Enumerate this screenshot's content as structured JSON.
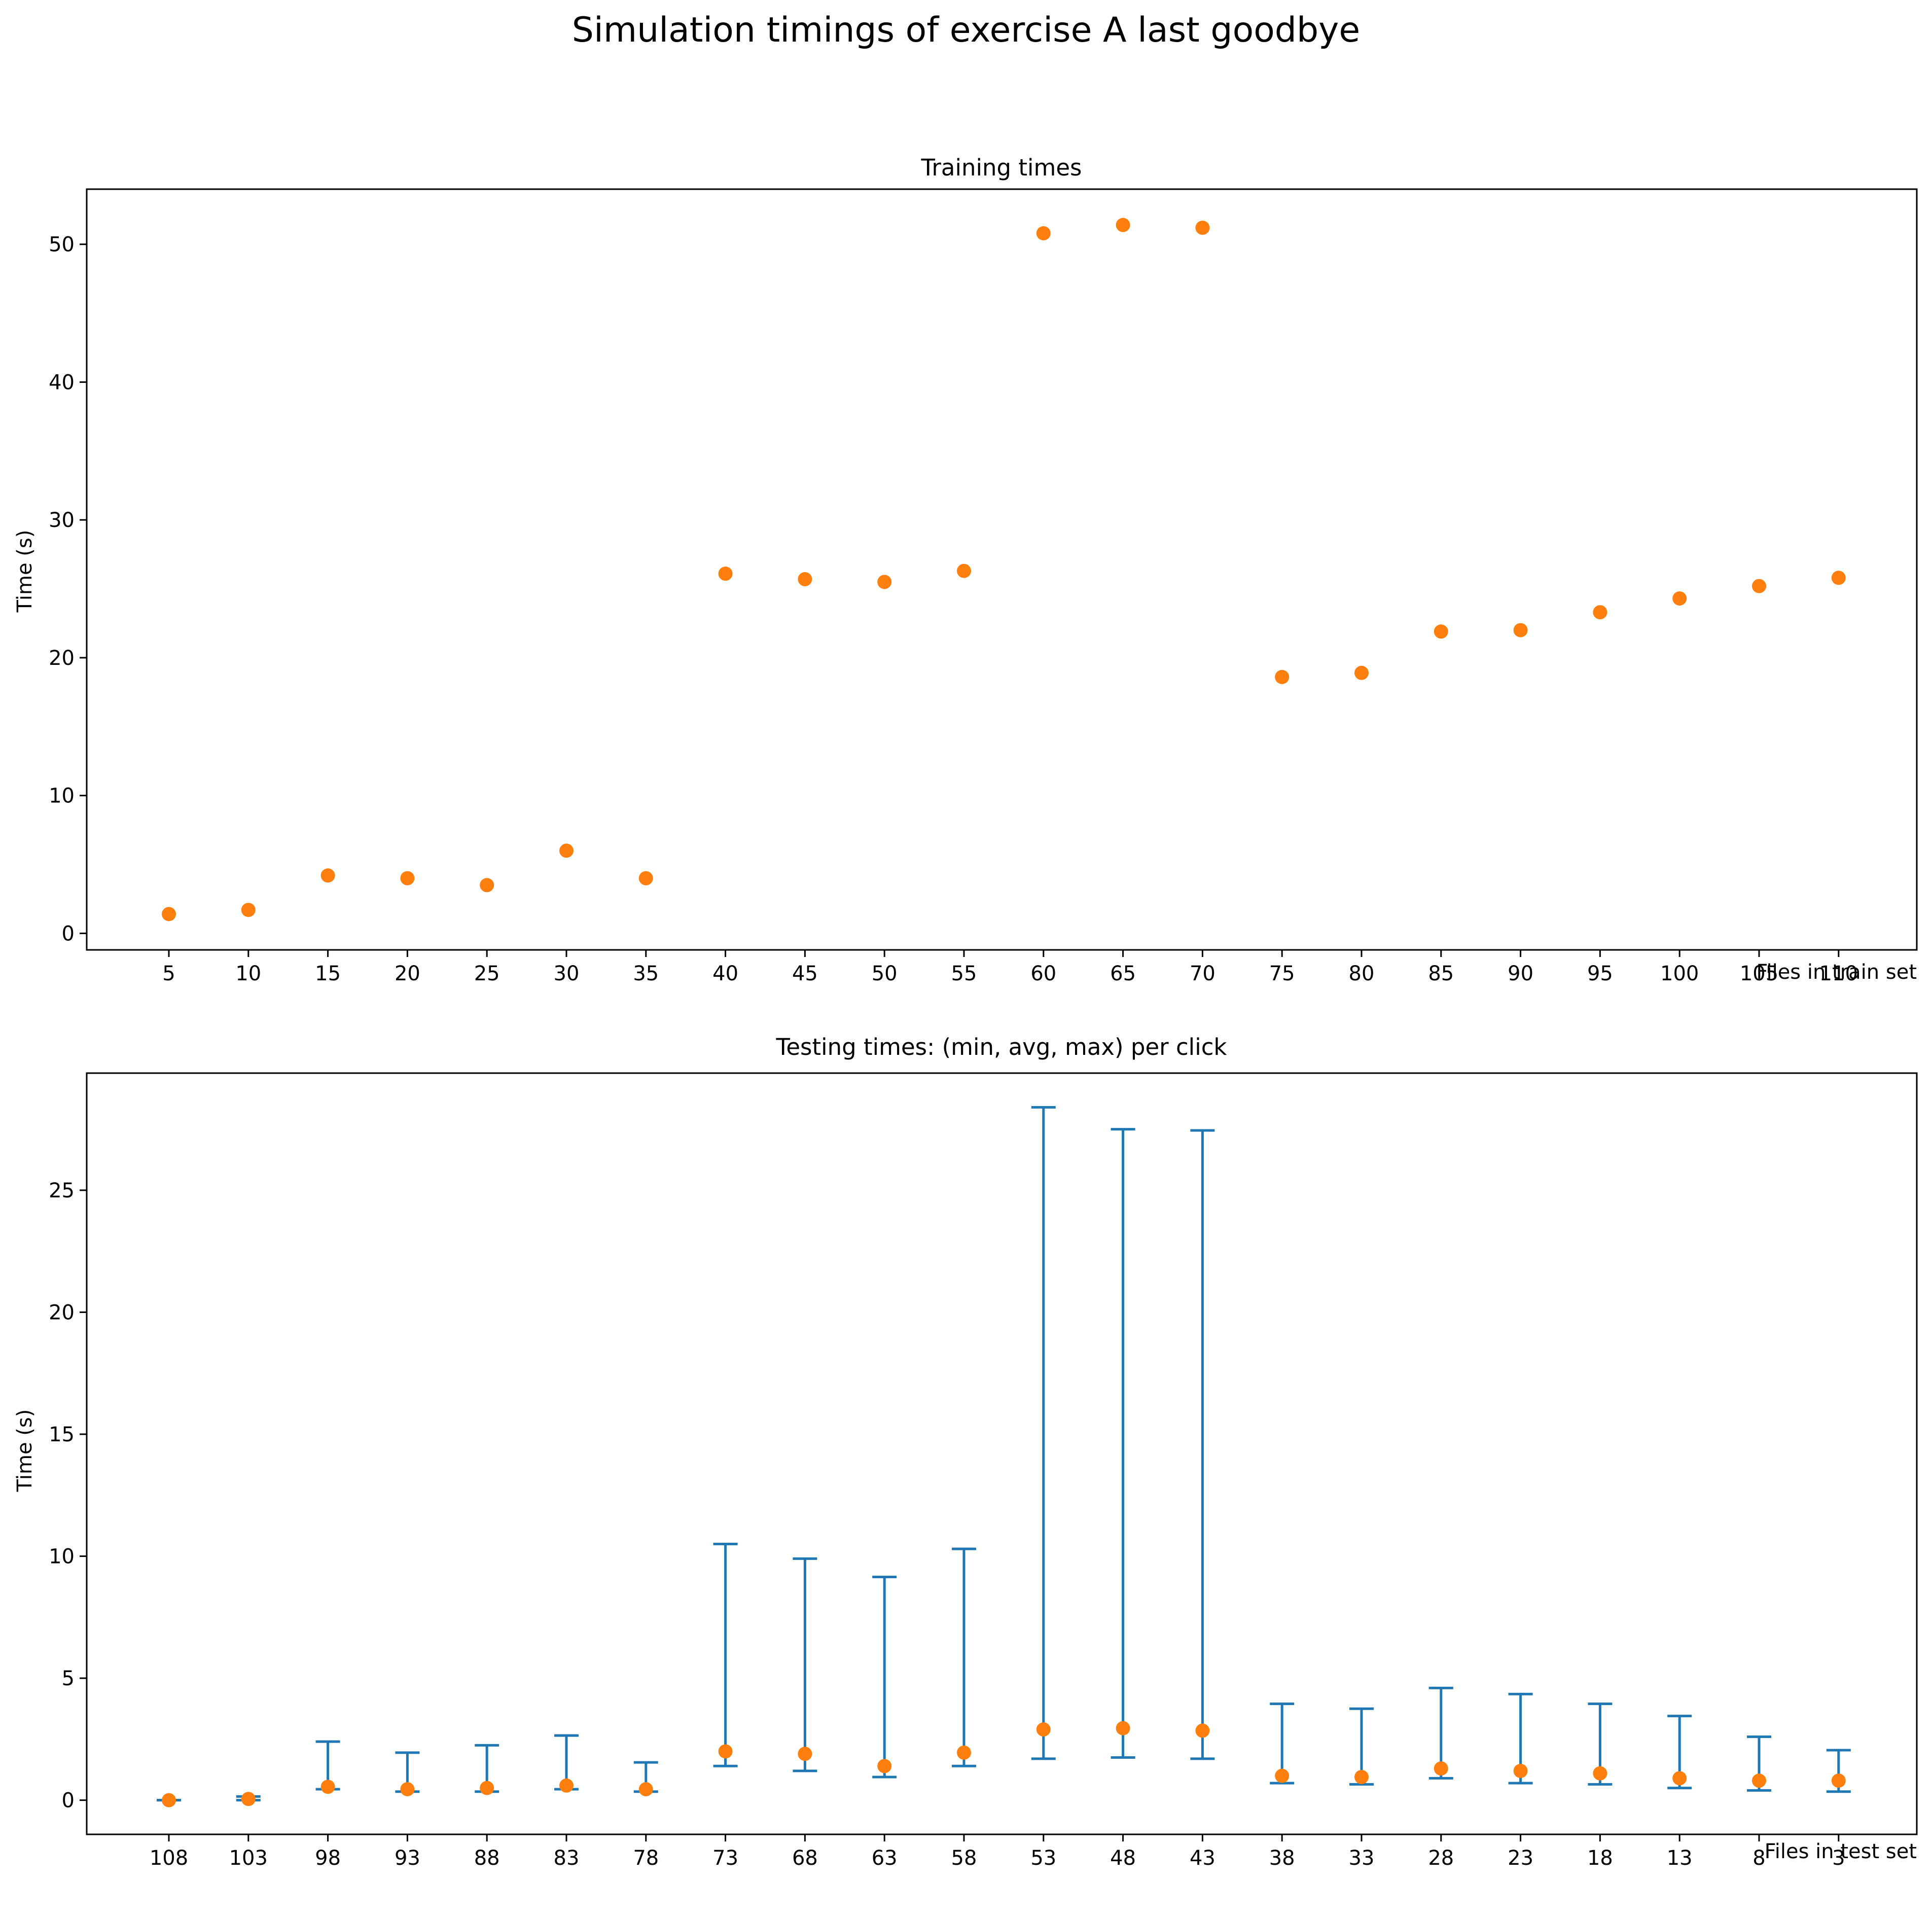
{
  "figure": {
    "suptitle": "Simulation timings of exercise A last goodbye"
  },
  "colors": {
    "marker": "#ff7f0e",
    "errorbar": "#1f77b4",
    "axes": "#000000"
  },
  "chart_data": [
    {
      "type": "scatter",
      "title": "Training times",
      "xlabel": "Files in train set",
      "ylabel": "Time (s)",
      "categories": [
        "5",
        "10",
        "15",
        "20",
        "25",
        "30",
        "35",
        "40",
        "45",
        "50",
        "55",
        "60",
        "65",
        "70",
        "75",
        "80",
        "85",
        "90",
        "95",
        "100",
        "105",
        "110"
      ],
      "values": [
        1.4,
        1.7,
        4.2,
        4.0,
        3.5,
        6.0,
        4.0,
        26.1,
        25.7,
        25.5,
        26.3,
        50.8,
        51.4,
        51.2,
        18.6,
        18.9,
        21.9,
        22.0,
        23.3,
        24.3,
        25.2,
        25.8
      ],
      "ylim": [
        -1.2,
        54.0
      ],
      "yticks": [
        0,
        10,
        20,
        30,
        40,
        50
      ],
      "grid": false,
      "legend": "none"
    },
    {
      "type": "scatter",
      "title": "Testing times: (min, avg, max) per click",
      "xlabel": "Files in test set",
      "ylabel": "Time (s)",
      "categories": [
        "108",
        "103",
        "98",
        "93",
        "88",
        "83",
        "78",
        "73",
        "68",
        "63",
        "58",
        "53",
        "48",
        "43",
        "38",
        "33",
        "28",
        "23",
        "18",
        "13",
        "8",
        "3"
      ],
      "values": [
        0.0,
        0.05,
        0.55,
        0.45,
        0.5,
        0.6,
        0.45,
        2.0,
        1.9,
        1.4,
        1.95,
        2.9,
        2.95,
        2.85,
        1.0,
        0.95,
        1.3,
        1.2,
        1.1,
        0.9,
        0.8,
        0.8
      ],
      "min": [
        0.0,
        0.0,
        0.45,
        0.35,
        0.35,
        0.45,
        0.35,
        1.4,
        1.2,
        0.95,
        1.4,
        1.7,
        1.75,
        1.7,
        0.7,
        0.65,
        0.9,
        0.7,
        0.65,
        0.5,
        0.4,
        0.35
      ],
      "max": [
        0.0,
        0.15,
        2.4,
        1.95,
        2.25,
        2.65,
        1.55,
        10.5,
        9.9,
        9.15,
        10.3,
        28.4,
        27.5,
        27.45,
        3.95,
        3.75,
        4.6,
        4.35,
        3.95,
        3.45,
        2.6,
        2.05
      ],
      "ylim": [
        -1.4,
        29.8
      ],
      "yticks": [
        0,
        5,
        10,
        15,
        20,
        25
      ],
      "grid": false,
      "legend": "none"
    }
  ]
}
